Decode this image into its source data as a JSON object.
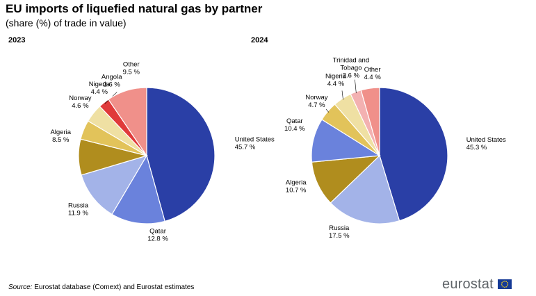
{
  "title": "EU imports of liquefied natural gas by partner",
  "subtitle": "(share (%) of trade in value)",
  "source": {
    "label": "Source:",
    "text": "Eurostat database (Comext) and Eurostat estimates"
  },
  "brand": "eurostat",
  "icons": {
    "logo_flag": "eu-flag-icon"
  },
  "chart_data": [
    {
      "type": "pie",
      "title": "2023",
      "slices": [
        {
          "label": "United States",
          "value": 45.7,
          "display": "45.7 %",
          "color": "#2a3fa6"
        },
        {
          "label": "Qatar",
          "value": 12.8,
          "display": "12.8 %",
          "color": "#6a82dc"
        },
        {
          "label": "Russia",
          "value": 11.9,
          "display": "11.9 %",
          "color": "#a3b3e8"
        },
        {
          "label": "Algeria",
          "value": 8.5,
          "display": "8.5 %",
          "color": "#b08d1e"
        },
        {
          "label": "Norway",
          "value": 4.6,
          "display": "4.6 %",
          "color": "#e2c35a"
        },
        {
          "label": "Nigeria",
          "value": 4.4,
          "display": "4.4 %",
          "color": "#efe0a3"
        },
        {
          "label": "Angola",
          "value": 2.6,
          "display": "2.6 %",
          "color": "#e03a3a"
        },
        {
          "label": "Other",
          "value": 9.5,
          "display": "9.5 %",
          "color": "#f0908a"
        }
      ]
    },
    {
      "type": "pie",
      "title": "2024",
      "slices": [
        {
          "label": "United States",
          "value": 45.3,
          "display": "45.3 %",
          "color": "#2a3fa6"
        },
        {
          "label": "Russia",
          "value": 17.5,
          "display": "17.5 %",
          "color": "#a3b3e8"
        },
        {
          "label": "Algeria",
          "value": 10.7,
          "display": "10.7 %",
          "color": "#b08d1e"
        },
        {
          "label": "Qatar",
          "value": 10.4,
          "display": "10.4 %",
          "color": "#6a82dc"
        },
        {
          "label": "Norway",
          "value": 4.7,
          "display": "4.7 %",
          "color": "#e2c35a"
        },
        {
          "label": "Nigeria",
          "value": 4.4,
          "display": "4.4 %",
          "color": "#efe0a3"
        },
        {
          "label": "Trinidad and Tobago",
          "value": 2.6,
          "display": "2.6 %",
          "color": "#f3b1b1"
        },
        {
          "label": "Other",
          "value": 4.4,
          "display": "4.4 %",
          "color": "#f0908a"
        }
      ]
    }
  ]
}
